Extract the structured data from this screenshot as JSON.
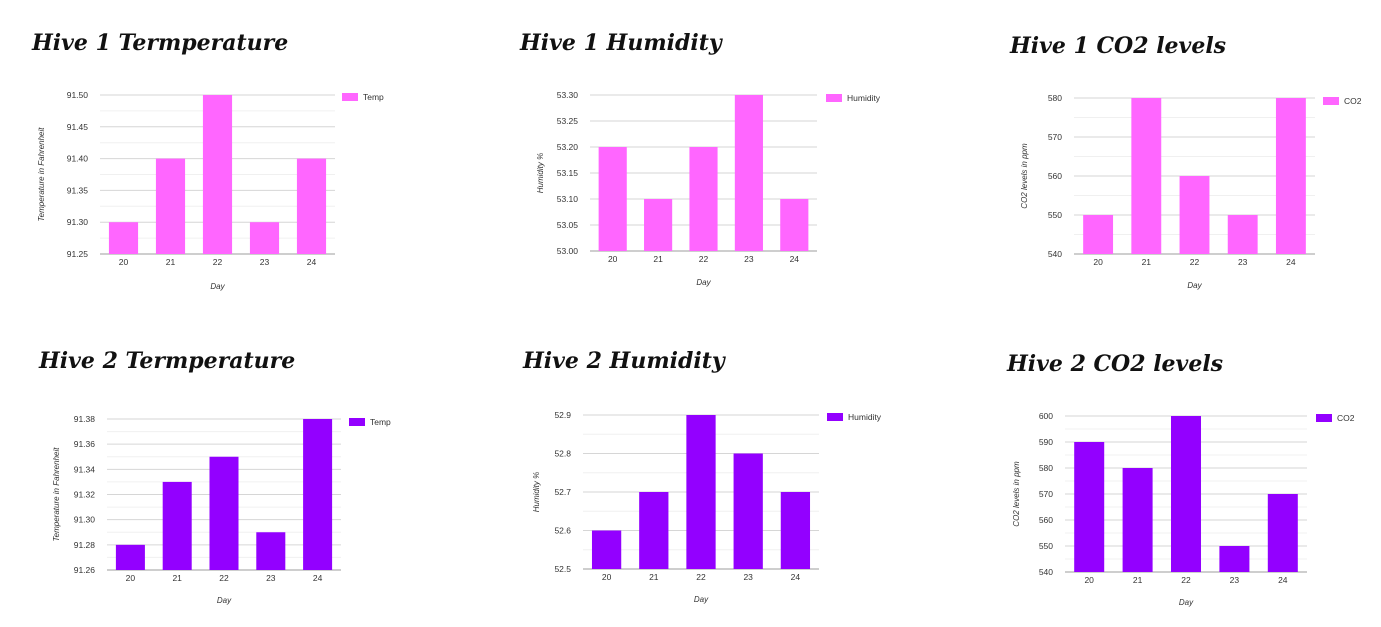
{
  "chart_data": [
    {
      "type": "bar",
      "title": "Hive 1 Termperature",
      "categories": [
        "20",
        "21",
        "22",
        "23",
        "24"
      ],
      "series": [
        {
          "name": "Temp",
          "values": [
            91.3,
            91.4,
            91.5,
            91.3,
            91.4
          ],
          "color": "#ff66ff"
        }
      ],
      "xlabel": "Day",
      "ylabel": "Temperature in Fahrenheit",
      "ylim": [
        91.25,
        91.5
      ],
      "yticks": [
        "91.25",
        "91.30",
        "91.35",
        "91.40",
        "91.45",
        "91.50"
      ],
      "minor_grid": true,
      "legend": "right"
    },
    {
      "type": "bar",
      "title": "Hive 1 Humidity",
      "categories": [
        "20",
        "21",
        "22",
        "23",
        "24"
      ],
      "series": [
        {
          "name": "Humidity",
          "values": [
            53.2,
            53.1,
            53.2,
            53.3,
            53.1
          ],
          "color": "#ff66ff"
        }
      ],
      "xlabel": "Day",
      "ylabel": "Humidity %",
      "ylim": [
        53.0,
        53.3
      ],
      "yticks": [
        "53.00",
        "53.05",
        "53.10",
        "53.15",
        "53.20",
        "53.25",
        "53.30"
      ],
      "minor_grid": false,
      "legend": "right"
    },
    {
      "type": "bar",
      "title": "Hive 1 CO2 levels",
      "categories": [
        "20",
        "21",
        "22",
        "23",
        "24"
      ],
      "series": [
        {
          "name": "CO2",
          "values": [
            550,
            580,
            560,
            550,
            580
          ],
          "color": "#ff66ff"
        }
      ],
      "xlabel": "Day",
      "ylabel": "CO2 levels in ppm",
      "ylim": [
        540,
        580
      ],
      "yticks": [
        "540",
        "550",
        "560",
        "570",
        "580"
      ],
      "minor_grid": true,
      "legend": "right"
    },
    {
      "type": "bar",
      "title": "Hive 2 Termperature",
      "categories": [
        "20",
        "21",
        "22",
        "23",
        "24"
      ],
      "series": [
        {
          "name": "Temp",
          "values": [
            91.28,
            91.33,
            91.35,
            91.29,
            91.38
          ],
          "color": "#9300ff"
        }
      ],
      "xlabel": "Day",
      "ylabel": "Temperature in Fahrenheit",
      "ylim": [
        91.26,
        91.38
      ],
      "yticks": [
        "91.26",
        "91.28",
        "91.30",
        "91.32",
        "91.34",
        "91.36",
        "91.38"
      ],
      "minor_grid": true,
      "legend": "right"
    },
    {
      "type": "bar",
      "title": "Hive 2 Humidity",
      "categories": [
        "20",
        "21",
        "22",
        "23",
        "24"
      ],
      "series": [
        {
          "name": "Humidity",
          "values": [
            52.6,
            52.7,
            52.9,
            52.8,
            52.7
          ],
          "color": "#9300ff"
        }
      ],
      "xlabel": "Day",
      "ylabel": "Humidity %",
      "ylim": [
        52.5,
        52.9
      ],
      "yticks": [
        "52.5",
        "52.6",
        "52.7",
        "52.8",
        "52.9"
      ],
      "minor_grid": true,
      "legend": "right"
    },
    {
      "type": "bar",
      "title": "Hive 2 CO2 levels",
      "categories": [
        "20",
        "21",
        "22",
        "23",
        "24"
      ],
      "series": [
        {
          "name": "CO2",
          "values": [
            590,
            580,
            600,
            550,
            570
          ],
          "color": "#9300ff"
        }
      ],
      "xlabel": "Day",
      "ylabel": "CO2 levels in ppm",
      "ylim": [
        540,
        600
      ],
      "yticks": [
        "540",
        "550",
        "560",
        "570",
        "580",
        "590",
        "600"
      ],
      "minor_grid": true,
      "legend": "right"
    }
  ]
}
